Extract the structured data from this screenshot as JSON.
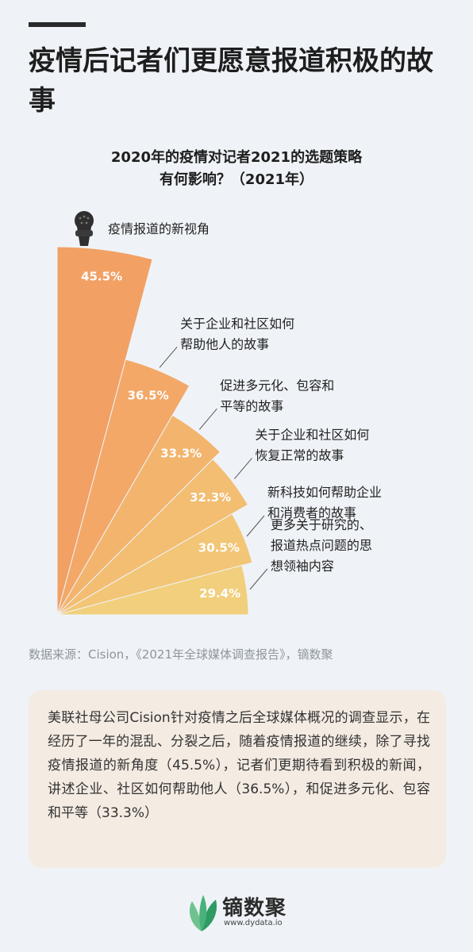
{
  "headline": "疫情后记者们更愿意报道积极的故事",
  "chart_data": {
    "type": "bar",
    "title_line1": "2020年的疫情对记者2021的选题策略",
    "title_line2": "有何影响？（2021年）",
    "series": [
      {
        "category": "疫情报道的新视角",
        "value": 45.5,
        "label": "45.5%"
      },
      {
        "category": "关于企业和社区如何\n帮助他人的故事",
        "value": 36.5,
        "label": "36.5%"
      },
      {
        "category": "促进多元化、包容和\n平等的故事",
        "value": 33.3,
        "label": "33.3%"
      },
      {
        "category": "关于企业和社区如何\n恢复正常的故事",
        "value": 32.3,
        "label": "32.3%"
      },
      {
        "category": "新科技如何帮助企业\n和消费者的故事",
        "value": 30.5,
        "label": "30.5%"
      },
      {
        "category": "更多关于研究的、\n报道热点问题的思\n想领袖内容",
        "value": 29.4,
        "label": "29.4%"
      }
    ],
    "colors": [
      "#f2a064",
      "#f3a868",
      "#f3b46e",
      "#f3bd72",
      "#f2c676",
      "#f1cf7c"
    ]
  },
  "source": "数据来源：Cision，《2021年全球媒体调查报告》，镝数聚",
  "summary": "美联社母公司Cision针对疫情之后全球媒体概况的调查显示，在经历了一年的混乱、分裂之后，随着疫情报道的继续，除了寻找疫情报道的新角度（45.5%），记者们更期待看到积极的新闻，讲述企业、社区如何帮助他人（36.5%），和促进多元化、包容和平等（33.3%）",
  "logo": {
    "name": "镝数聚",
    "url": "www.dydata.io"
  },
  "icons": {
    "title_icon": "microphone-icon",
    "logo_icon": "leaf-icon"
  }
}
